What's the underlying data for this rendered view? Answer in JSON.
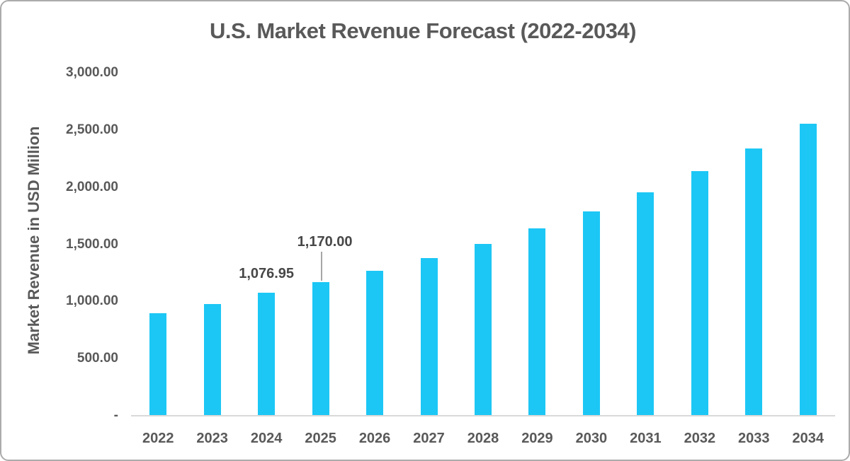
{
  "chart_data": {
    "type": "bar",
    "title": "U.S. Market Revenue Forecast (2022-2034)",
    "xlabel": "",
    "ylabel": "Market Revenue in USD Million",
    "categories": [
      "2022",
      "2023",
      "2024",
      "2025",
      "2026",
      "2027",
      "2028",
      "2029",
      "2030",
      "2031",
      "2032",
      "2033",
      "2034"
    ],
    "values": [
      900,
      980,
      1076.95,
      1170,
      1270,
      1380,
      1505,
      1640,
      1790,
      1955,
      2140,
      2340,
      2555
    ],
    "ylim": [
      0,
      3000
    ],
    "ytick_step": 500,
    "ytick_labels": [
      "-",
      "500.00",
      "1,000.00",
      "1,500.00",
      "2,000.00",
      "2,500.00",
      "3,000.00"
    ],
    "grid": false,
    "legend": "none",
    "annotations": [
      {
        "index": 2,
        "text": "1,076.95",
        "raise": 16,
        "leader": false,
        "dx": 0
      },
      {
        "index": 3,
        "text": "1,170.00",
        "raise": 46,
        "leader": true,
        "dx": 6
      }
    ]
  },
  "colors": {
    "bar": "#1cc7f5",
    "title_text": "#595959",
    "axis_text": "#595959",
    "data_label_text": "#474747",
    "axis_line": "#d9d9d9",
    "leader_line": "#a6a6a6",
    "frame_border": "#ababab",
    "background": "#ffffff"
  }
}
